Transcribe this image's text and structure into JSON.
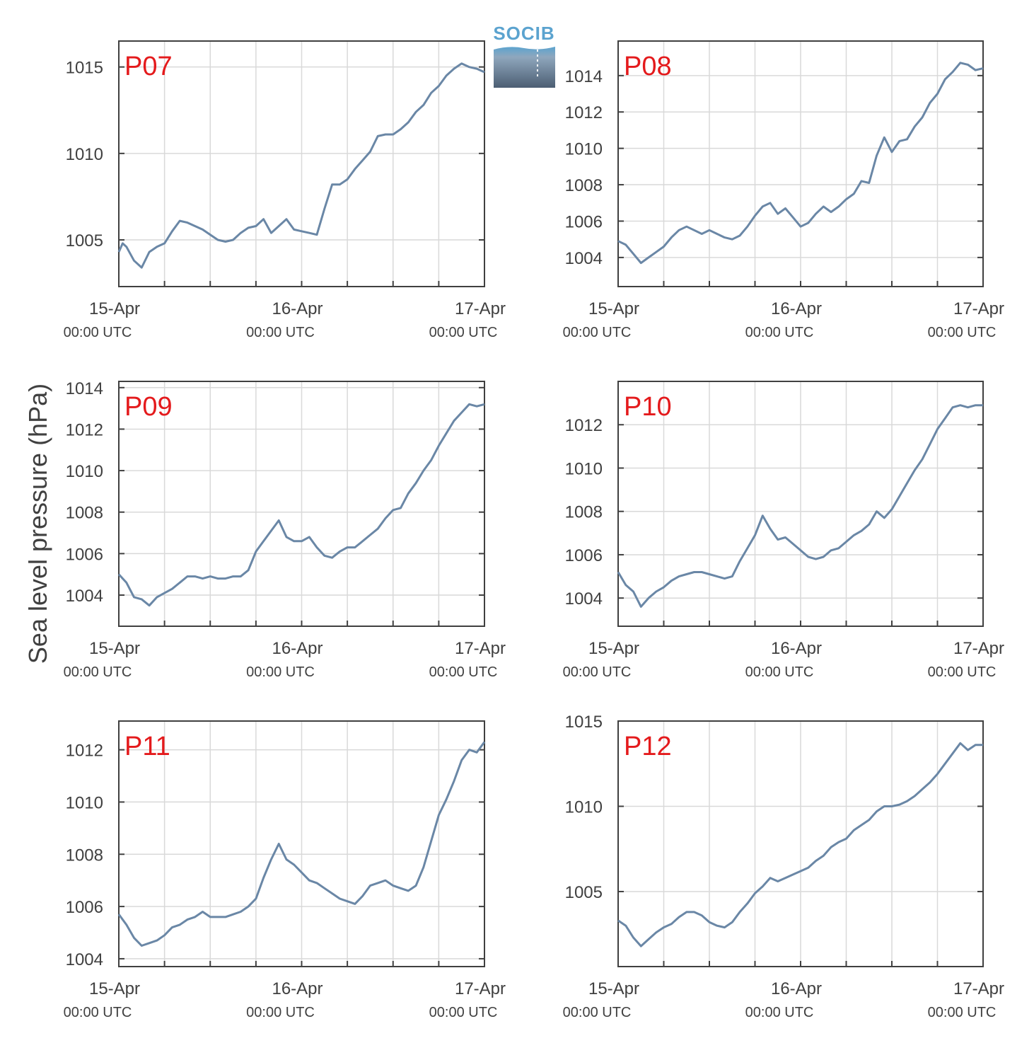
{
  "figure": {
    "ylabel": "Sea level pressure (hPa)",
    "logo_text": "SOCIB",
    "colors": {
      "series": "#6a87a6",
      "panel_label": "#e41a1c",
      "grid": "#d9d9d9",
      "axis": "#404040"
    }
  },
  "chart_data": [
    {
      "type": "line",
      "title": "P07",
      "xlabel": "",
      "ylabel": "",
      "x_ticks": [
        {
          "date": "15-Apr",
          "time": "00:00 UTC"
        },
        {
          "date": "16-Apr",
          "time": "00:00 UTC"
        },
        {
          "date": "17-Apr",
          "time": "00:00 UTC"
        }
      ],
      "x_range_hours": [
        0,
        48
      ],
      "ylim": [
        1002.3,
        1016.5
      ],
      "yticks": [
        1005,
        1010,
        1015
      ],
      "grid": true,
      "series": [
        {
          "x": [
            0,
            0.5,
            1,
            2,
            3,
            4,
            5,
            6,
            7,
            8,
            9,
            10,
            11,
            12,
            13,
            14,
            15,
            16,
            17,
            18,
            19,
            20,
            21,
            22,
            23,
            24,
            25,
            26,
            27,
            28,
            29,
            30,
            31,
            32,
            33,
            34,
            35,
            36,
            37,
            38,
            39,
            40,
            41,
            42,
            43,
            44,
            45,
            46,
            47,
            48
          ],
          "y": [
            1004.3,
            1004.8,
            1004.6,
            1003.8,
            1003.4,
            1004.3,
            1004.6,
            1004.8,
            1005.5,
            1006.1,
            1006.0,
            1005.8,
            1005.6,
            1005.3,
            1005.0,
            1004.9,
            1005.0,
            1005.4,
            1005.7,
            1005.8,
            1006.2,
            1005.4,
            1005.8,
            1006.2,
            1005.6,
            1005.5,
            1005.4,
            1005.3,
            1006.8,
            1008.2,
            1008.2,
            1008.5,
            1009.1,
            1009.6,
            1010.1,
            1011.0,
            1011.1,
            1011.1,
            1011.4,
            1011.8,
            1012.4,
            1012.8,
            1013.5,
            1013.9,
            1014.5,
            1014.9,
            1015.2,
            1015.0,
            1014.9,
            1014.7
          ]
        }
      ]
    },
    {
      "type": "line",
      "title": "P08",
      "xlabel": "",
      "ylabel": "",
      "x_ticks": [
        {
          "date": "15-Apr",
          "time": "00:00 UTC"
        },
        {
          "date": "16-Apr",
          "time": "00:00 UTC"
        },
        {
          "date": "17-Apr",
          "time": "00:00 UTC"
        }
      ],
      "x_range_hours": [
        0,
        48
      ],
      "ylim": [
        1002.4,
        1015.9
      ],
      "yticks": [
        1004,
        1006,
        1008,
        1010,
        1012,
        1014
      ],
      "grid": true,
      "series": [
        {
          "x": [
            0,
            1,
            2,
            3,
            4,
            5,
            6,
            7,
            8,
            9,
            10,
            11,
            12,
            13,
            14,
            15,
            16,
            17,
            18,
            19,
            20,
            21,
            22,
            23,
            24,
            25,
            26,
            27,
            28,
            29,
            30,
            31,
            32,
            33,
            34,
            35,
            36,
            37,
            38,
            39,
            40,
            41,
            42,
            43,
            44,
            45,
            46,
            47,
            48
          ],
          "y": [
            1004.9,
            1004.7,
            1004.2,
            1003.7,
            1004.0,
            1004.3,
            1004.6,
            1005.1,
            1005.5,
            1005.7,
            1005.5,
            1005.3,
            1005.5,
            1005.3,
            1005.1,
            1005.0,
            1005.2,
            1005.7,
            1006.3,
            1006.8,
            1007.0,
            1006.4,
            1006.7,
            1006.2,
            1005.7,
            1005.9,
            1006.4,
            1006.8,
            1006.5,
            1006.8,
            1007.2,
            1007.5,
            1008.2,
            1008.1,
            1009.6,
            1010.6,
            1009.8,
            1010.4,
            1010.5,
            1011.2,
            1011.7,
            1012.5,
            1013.0,
            1013.8,
            1014.2,
            1014.7,
            1014.6,
            1014.3,
            1014.4
          ]
        }
      ]
    },
    {
      "type": "line",
      "title": "P09",
      "xlabel": "",
      "ylabel": "",
      "x_ticks": [
        {
          "date": "15-Apr",
          "time": "00:00 UTC"
        },
        {
          "date": "16-Apr",
          "time": "00:00 UTC"
        },
        {
          "date": "17-Apr",
          "time": "00:00 UTC"
        }
      ],
      "x_range_hours": [
        0,
        48
      ],
      "ylim": [
        1002.5,
        1014.3
      ],
      "yticks": [
        1004,
        1006,
        1008,
        1010,
        1012,
        1014
      ],
      "grid": true,
      "series": [
        {
          "x": [
            0,
            1,
            2,
            3,
            4,
            5,
            6,
            7,
            8,
            9,
            10,
            11,
            12,
            13,
            14,
            15,
            16,
            17,
            18,
            19,
            20,
            21,
            22,
            23,
            24,
            25,
            26,
            27,
            28,
            29,
            30,
            31,
            32,
            33,
            34,
            35,
            36,
            37,
            38,
            39,
            40,
            41,
            42,
            43,
            44,
            45,
            46,
            47,
            48
          ],
          "y": [
            1005.0,
            1004.6,
            1003.9,
            1003.8,
            1003.5,
            1003.9,
            1004.1,
            1004.3,
            1004.6,
            1004.9,
            1004.9,
            1004.8,
            1004.9,
            1004.8,
            1004.8,
            1004.9,
            1004.9,
            1005.2,
            1006.1,
            1006.6,
            1007.1,
            1007.6,
            1006.8,
            1006.6,
            1006.6,
            1006.8,
            1006.3,
            1005.9,
            1005.8,
            1006.1,
            1006.3,
            1006.3,
            1006.6,
            1006.9,
            1007.2,
            1007.7,
            1008.1,
            1008.2,
            1008.9,
            1009.4,
            1010.0,
            1010.5,
            1011.2,
            1011.8,
            1012.4,
            1012.8,
            1013.2,
            1013.1,
            1013.2
          ]
        }
      ]
    },
    {
      "type": "line",
      "title": "P10",
      "xlabel": "",
      "ylabel": "",
      "x_ticks": [
        {
          "date": "15-Apr",
          "time": "00:00 UTC"
        },
        {
          "date": "16-Apr",
          "time": "00:00 UTC"
        },
        {
          "date": "17-Apr",
          "time": "00:00 UTC"
        }
      ],
      "x_range_hours": [
        0,
        48
      ],
      "ylim": [
        1002.7,
        1014.0
      ],
      "yticks": [
        1004,
        1006,
        1008,
        1010,
        1012
      ],
      "grid": true,
      "series": [
        {
          "x": [
            0,
            1,
            2,
            3,
            4,
            5,
            6,
            7,
            8,
            9,
            10,
            11,
            12,
            13,
            14,
            15,
            16,
            17,
            18,
            19,
            20,
            21,
            22,
            23,
            24,
            25,
            26,
            27,
            28,
            29,
            30,
            31,
            32,
            33,
            34,
            35,
            36,
            37,
            38,
            39,
            40,
            41,
            42,
            43,
            44,
            45,
            46,
            47,
            48
          ],
          "y": [
            1005.2,
            1004.6,
            1004.3,
            1003.6,
            1004.0,
            1004.3,
            1004.5,
            1004.8,
            1005.0,
            1005.1,
            1005.2,
            1005.2,
            1005.1,
            1005.0,
            1004.9,
            1005.0,
            1005.7,
            1006.3,
            1006.9,
            1007.8,
            1007.2,
            1006.7,
            1006.8,
            1006.5,
            1006.2,
            1005.9,
            1005.8,
            1005.9,
            1006.2,
            1006.3,
            1006.6,
            1006.9,
            1007.1,
            1007.4,
            1008.0,
            1007.7,
            1008.1,
            1008.7,
            1009.3,
            1009.9,
            1010.4,
            1011.1,
            1011.8,
            1012.3,
            1012.8,
            1012.9,
            1012.8,
            1012.9,
            1012.9
          ]
        }
      ]
    },
    {
      "type": "line",
      "title": "P11",
      "xlabel": "",
      "ylabel": "",
      "x_ticks": [
        {
          "date": "15-Apr",
          "time": "00:00 UTC"
        },
        {
          "date": "16-Apr",
          "time": "00:00 UTC"
        },
        {
          "date": "17-Apr",
          "time": "00:00 UTC"
        }
      ],
      "x_range_hours": [
        0,
        48
      ],
      "ylim": [
        1003.7,
        1013.1
      ],
      "yticks": [
        1004,
        1006,
        1008,
        1010,
        1012
      ],
      "grid": true,
      "series": [
        {
          "x": [
            0,
            1,
            2,
            3,
            4,
            5,
            6,
            7,
            8,
            9,
            10,
            11,
            12,
            13,
            14,
            15,
            16,
            17,
            18,
            19,
            20,
            21,
            22,
            23,
            24,
            25,
            26,
            27,
            28,
            29,
            30,
            31,
            32,
            33,
            34,
            35,
            36,
            37,
            38,
            39,
            40,
            41,
            42,
            43,
            44,
            45,
            46,
            47,
            48
          ],
          "y": [
            1005.7,
            1005.3,
            1004.8,
            1004.5,
            1004.6,
            1004.7,
            1004.9,
            1005.2,
            1005.3,
            1005.5,
            1005.6,
            1005.8,
            1005.6,
            1005.6,
            1005.6,
            1005.7,
            1005.8,
            1006.0,
            1006.3,
            1007.1,
            1007.8,
            1008.4,
            1007.8,
            1007.6,
            1007.3,
            1007.0,
            1006.9,
            1006.7,
            1006.5,
            1006.3,
            1006.2,
            1006.1,
            1006.4,
            1006.8,
            1006.9,
            1007.0,
            1006.8,
            1006.7,
            1006.6,
            1006.8,
            1007.5,
            1008.5,
            1009.5,
            1010.1,
            1010.8,
            1011.6,
            1012.0,
            1011.9,
            1012.3
          ]
        }
      ]
    },
    {
      "type": "line",
      "title": "P12",
      "xlabel": "",
      "ylabel": "",
      "x_ticks": [
        {
          "date": "15-Apr",
          "time": "00:00 UTC"
        },
        {
          "date": "16-Apr",
          "time": "00:00 UTC"
        },
        {
          "date": "17-Apr",
          "time": "00:00 UTC"
        }
      ],
      "x_range_hours": [
        0,
        48
      ],
      "ylim": [
        1000.6,
        1015.0
      ],
      "yticks": [
        1005,
        1010,
        1015
      ],
      "grid": true,
      "series": [
        {
          "x": [
            0,
            1,
            2,
            3,
            4,
            5,
            6,
            7,
            8,
            9,
            10,
            11,
            12,
            13,
            14,
            15,
            16,
            17,
            18,
            19,
            20,
            21,
            22,
            23,
            24,
            25,
            26,
            27,
            28,
            29,
            30,
            31,
            32,
            33,
            34,
            35,
            36,
            37,
            38,
            39,
            40,
            41,
            42,
            43,
            44,
            45,
            46,
            47,
            48
          ],
          "y": [
            1003.3,
            1003.0,
            1002.3,
            1001.8,
            1002.2,
            1002.6,
            1002.9,
            1003.1,
            1003.5,
            1003.8,
            1003.8,
            1003.6,
            1003.2,
            1003.0,
            1002.9,
            1003.2,
            1003.8,
            1004.3,
            1004.9,
            1005.3,
            1005.8,
            1005.6,
            1005.8,
            1006.0,
            1006.2,
            1006.4,
            1006.8,
            1007.1,
            1007.6,
            1007.9,
            1008.1,
            1008.6,
            1008.9,
            1009.2,
            1009.7,
            1010.0,
            1010.0,
            1010.1,
            1010.3,
            1010.6,
            1011.0,
            1011.4,
            1011.9,
            1012.5,
            1013.1,
            1013.7,
            1013.3,
            1013.6,
            1013.6
          ]
        }
      ]
    }
  ]
}
